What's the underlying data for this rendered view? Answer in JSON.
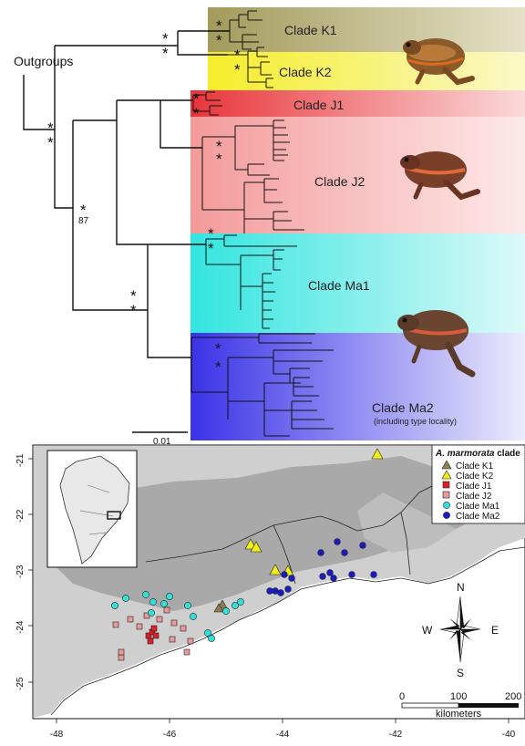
{
  "tree": {
    "outgroups_label": "Outgroups",
    "support_star": "*",
    "bootstrap_87": "87",
    "scale_label": "0.01",
    "clades": {
      "k1": {
        "name": "Clade K1",
        "color": "#a39b5c"
      },
      "k2": {
        "name": "Clade K2",
        "color": "#f5ed2a"
      },
      "j1": {
        "name": "Clade J1",
        "color": "#e8353a"
      },
      "j2": {
        "name": "Clade J2",
        "color": "#f49a9a"
      },
      "ma1": {
        "name": "Clade Ma1",
        "color": "#33e5e0"
      },
      "ma2": {
        "name": "Clade Ma2",
        "note": "(including type locality)",
        "color": "#3a33e8"
      }
    }
  },
  "map": {
    "legend": {
      "title_species": "A. marmorata",
      "title_rest": " clade",
      "items": [
        {
          "key": "k1",
          "label": "Clade K1",
          "shape": "triangle",
          "color": "#8c8050"
        },
        {
          "key": "k2",
          "label": "Clade K2",
          "shape": "triangle",
          "color": "#f2f012"
        },
        {
          "key": "j1",
          "label": "Clade J1",
          "shape": "square",
          "color": "#dd1f26"
        },
        {
          "key": "j2",
          "label": "Clade J2",
          "shape": "square",
          "color": "#e89a9a"
        },
        {
          "key": "ma1",
          "label": "Clade Ma1",
          "shape": "circle",
          "color": "#2fe0dc"
        },
        {
          "key": "ma2",
          "label": "Clade Ma2",
          "shape": "circle",
          "color": "#1a1ac8"
        }
      ]
    },
    "x_ticks": [
      "-48",
      "-46",
      "-44",
      "-42",
      "-40"
    ],
    "y_ticks": [
      "-21",
      "-22",
      "-23",
      "-24",
      "-25"
    ],
    "compass": {
      "n": "N",
      "s": "S",
      "e": "E",
      "w": "W"
    },
    "scalebar": {
      "ticks": [
        "0",
        "100",
        "200"
      ],
      "unit": "kilometers"
    }
  }
}
